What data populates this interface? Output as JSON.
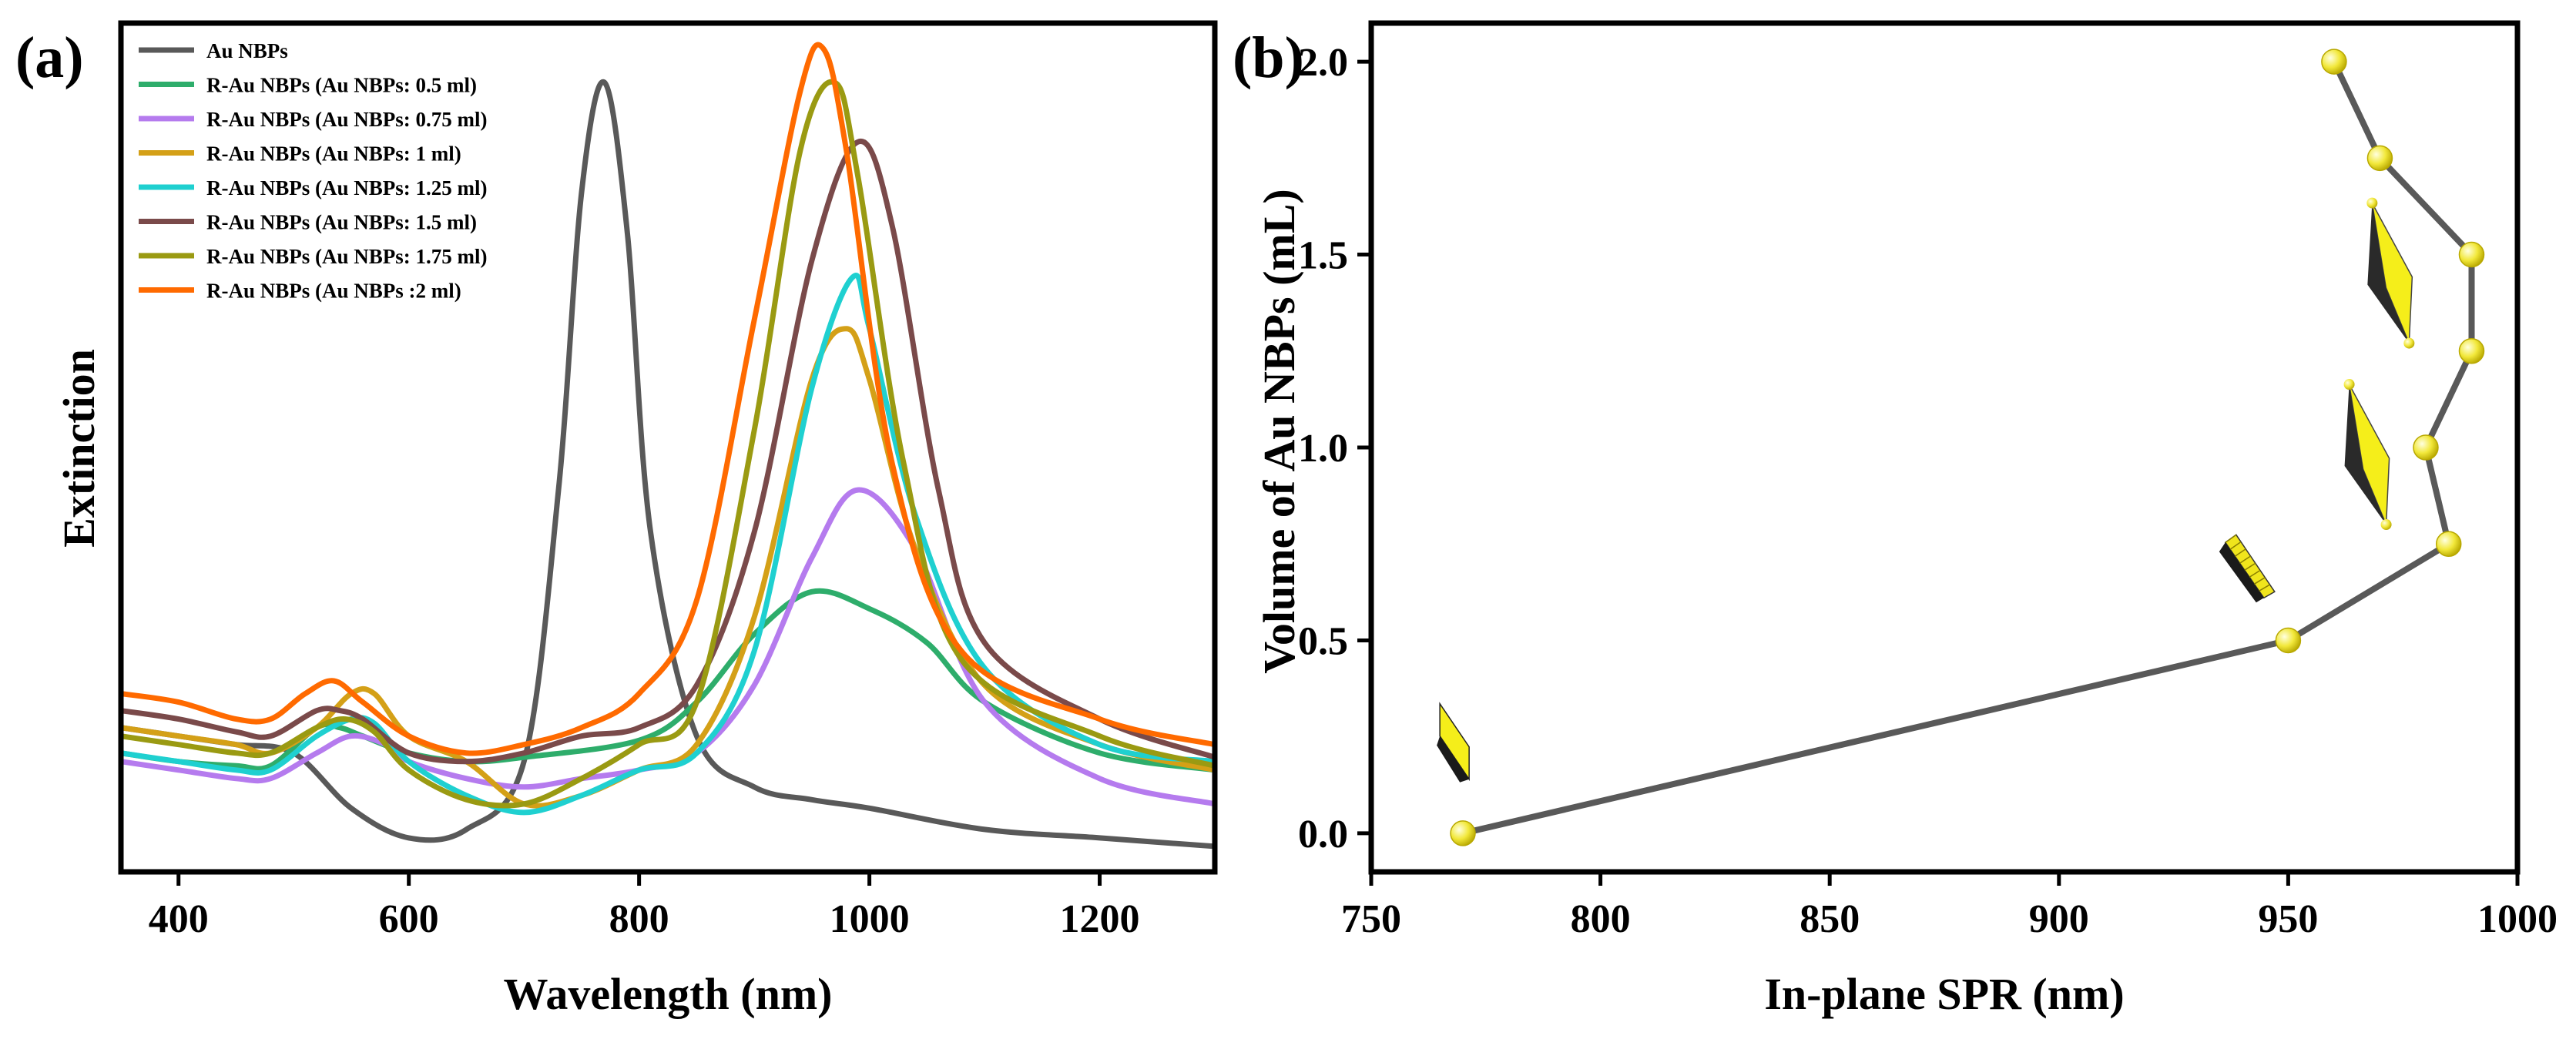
{
  "figure": {
    "panel_a_label": "(a)",
    "panel_b_label": "(b)"
  },
  "chart_data": [
    {
      "type": "line",
      "panel": "(a)",
      "title": "",
      "xlabel": "Wavelength (nm)",
      "ylabel": "Extinction",
      "xlim": [
        350,
        1300
      ],
      "ylim": [
        0,
        1.0
      ],
      "xticks": [
        400,
        600,
        800,
        1000,
        1200
      ],
      "yticks_visible": false,
      "legend_position": "top-left",
      "series": [
        {
          "name": "Au NBPs",
          "color": "#595959",
          "x": [
            350,
            400,
            450,
            500,
            550,
            600,
            650,
            700,
            730,
            750,
            770,
            790,
            810,
            850,
            900,
            950,
            1000,
            1100,
            1200,
            1300
          ],
          "y": [
            0.17,
            0.16,
            0.15,
            0.14,
            0.075,
            0.04,
            0.05,
            0.13,
            0.45,
            0.8,
            0.93,
            0.75,
            0.4,
            0.16,
            0.1,
            0.085,
            0.075,
            0.05,
            0.04,
            0.03
          ]
        },
        {
          "name": "R-Au NBPs (Au NBPs: 0.5 ml)",
          "color": "#2EAD6B",
          "x": [
            350,
            400,
            450,
            480,
            520,
            540,
            560,
            600,
            650,
            700,
            800,
            850,
            900,
            950,
            1000,
            1050,
            1100,
            1200,
            1300
          ],
          "y": [
            0.14,
            0.13,
            0.125,
            0.125,
            0.17,
            0.17,
            0.16,
            0.14,
            0.13,
            0.135,
            0.155,
            0.2,
            0.28,
            0.33,
            0.31,
            0.27,
            0.2,
            0.14,
            0.12
          ]
        },
        {
          "name": "R-Au NBPs (Au NBPs: 0.75 ml)",
          "color": "#B57BEE",
          "x": [
            350,
            400,
            450,
            480,
            520,
            550,
            580,
            600,
            650,
            700,
            750,
            800,
            850,
            900,
            950,
            990,
            1040,
            1100,
            1200,
            1300
          ],
          "y": [
            0.13,
            0.12,
            0.11,
            0.11,
            0.14,
            0.16,
            0.15,
            0.13,
            0.11,
            0.1,
            0.11,
            0.12,
            0.14,
            0.22,
            0.37,
            0.45,
            0.38,
            0.2,
            0.11,
            0.08
          ]
        },
        {
          "name": "R-Au NBPs (Au NBPs: 1 ml)",
          "color": "#D4A017",
          "x": [
            350,
            400,
            450,
            480,
            520,
            550,
            570,
            600,
            650,
            700,
            750,
            800,
            850,
            900,
            950,
            980,
            1000,
            1040,
            1100,
            1200,
            1300
          ],
          "y": [
            0.17,
            0.16,
            0.15,
            0.14,
            0.17,
            0.21,
            0.21,
            0.16,
            0.13,
            0.08,
            0.09,
            0.12,
            0.15,
            0.3,
            0.58,
            0.64,
            0.58,
            0.38,
            0.22,
            0.15,
            0.12
          ]
        },
        {
          "name": "R-Au NBPs (Au NBPs: 1.25 ml)",
          "color": "#1FD0D0",
          "x": [
            350,
            400,
            450,
            480,
            520,
            550,
            570,
            600,
            650,
            700,
            750,
            800,
            850,
            900,
            950,
            985,
            1000,
            1040,
            1100,
            1200,
            1300
          ],
          "y": [
            0.14,
            0.13,
            0.12,
            0.12,
            0.16,
            0.18,
            0.175,
            0.13,
            0.09,
            0.07,
            0.09,
            0.12,
            0.14,
            0.26,
            0.57,
            0.7,
            0.64,
            0.42,
            0.24,
            0.15,
            0.13
          ]
        },
        {
          "name": "R-Au NBPs (Au NBPs: 1.5 ml)",
          "color": "#7A4A4A",
          "x": [
            350,
            400,
            450,
            480,
            520,
            540,
            560,
            600,
            650,
            700,
            750,
            800,
            850,
            900,
            950,
            990,
            1020,
            1060,
            1100,
            1200,
            1300
          ],
          "y": [
            0.19,
            0.18,
            0.165,
            0.16,
            0.19,
            0.19,
            0.18,
            0.14,
            0.13,
            0.14,
            0.16,
            0.17,
            0.22,
            0.4,
            0.72,
            0.86,
            0.76,
            0.45,
            0.27,
            0.18,
            0.135
          ]
        },
        {
          "name": "R-Au NBPs (Au NBPs: 1.75 ml)",
          "color": "#9A9A12",
          "x": [
            350,
            400,
            450,
            480,
            520,
            545,
            570,
            600,
            650,
            700,
            750,
            800,
            850,
            900,
            940,
            970,
            990,
            1030,
            1080,
            1200,
            1300
          ],
          "y": [
            0.16,
            0.15,
            0.14,
            0.14,
            0.17,
            0.18,
            0.165,
            0.12,
            0.085,
            0.08,
            0.11,
            0.15,
            0.2,
            0.52,
            0.85,
            0.93,
            0.82,
            0.48,
            0.25,
            0.16,
            0.125
          ]
        },
        {
          "name": "R-Au NBPs (Au NBPs :2 ml)",
          "color": "#FF6A00",
          "x": [
            350,
            400,
            450,
            480,
            510,
            535,
            560,
            600,
            650,
            700,
            750,
            800,
            850,
            900,
            940,
            960,
            980,
            1020,
            1080,
            1200,
            1300
          ],
          "y": [
            0.21,
            0.2,
            0.18,
            0.18,
            0.21,
            0.225,
            0.2,
            0.16,
            0.14,
            0.15,
            0.17,
            0.21,
            0.32,
            0.65,
            0.92,
            0.97,
            0.85,
            0.48,
            0.26,
            0.18,
            0.15
          ]
        }
      ]
    },
    {
      "type": "scatter",
      "panel": "(b)",
      "title": "",
      "xlabel": "In-plane SPR (nm)",
      "ylabel": "Volume of Au NBPs (mL)",
      "xlim": [
        750,
        1000
      ],
      "ylim": [
        -0.1,
        2.1
      ],
      "xticks": [
        750,
        800,
        850,
        900,
        950,
        1000
      ],
      "yticks": [
        "0.0",
        "0.5",
        "1.0",
        "1.5",
        "2.0"
      ],
      "line_color": "#595959",
      "marker_color": "#F2E83A",
      "points": [
        {
          "x": 770,
          "y": 0.0
        },
        {
          "x": 950,
          "y": 0.5
        },
        {
          "x": 985,
          "y": 0.75
        },
        {
          "x": 980,
          "y": 1.0
        },
        {
          "x": 990,
          "y": 1.25
        },
        {
          "x": 990,
          "y": 1.5
        },
        {
          "x": 970,
          "y": 1.75
        },
        {
          "x": 960,
          "y": 2.0
        }
      ],
      "particle_illustrations": [
        {
          "name": "rod",
          "x": 768,
          "y": 0.22
        },
        {
          "name": "short-bipyramid",
          "x": 941,
          "y": 0.67
        },
        {
          "name": "bipyramid",
          "x": 967,
          "y": 0.98
        },
        {
          "name": "bipyramid",
          "x": 972,
          "y": 1.45
        }
      ]
    }
  ]
}
